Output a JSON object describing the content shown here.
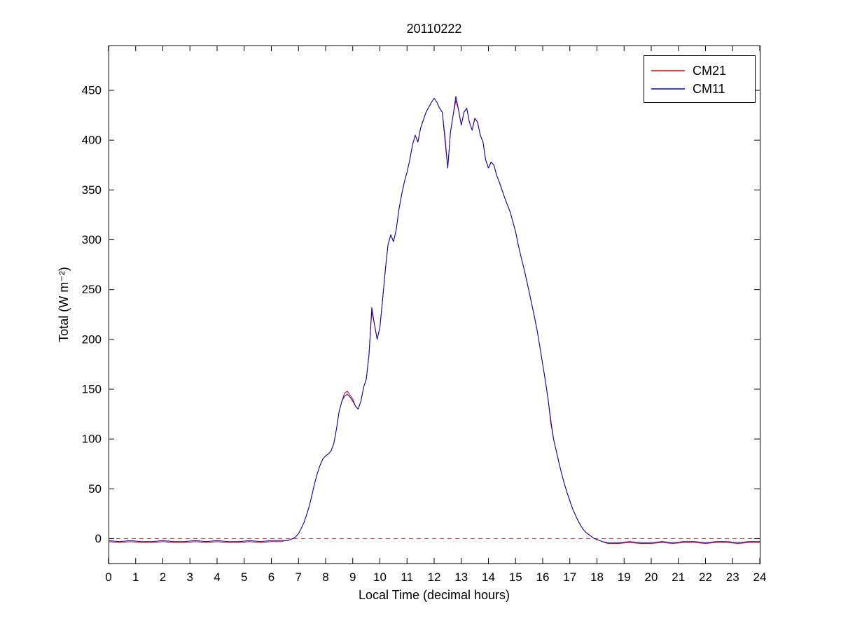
{
  "chart_data": {
    "type": "line",
    "title": "20110222",
    "xlabel": "Local Time (decimal hours)",
    "ylabel": "Total (W m⁻²)",
    "xlim": [
      0,
      24
    ],
    "ylim": [
      -25,
      495
    ],
    "xticks": [
      0,
      1,
      2,
      3,
      4,
      5,
      6,
      7,
      8,
      9,
      10,
      11,
      12,
      13,
      14,
      15,
      16,
      17,
      18,
      19,
      20,
      21,
      22,
      23,
      24
    ],
    "yticks": [
      0,
      50,
      100,
      150,
      200,
      250,
      300,
      350,
      400,
      450
    ],
    "grid": false,
    "legend_position": "top-right",
    "axis_color": "#000000",
    "background_color": "#ffffff",
    "zero_line": {
      "y": 0,
      "color": "#cc2222",
      "style": "dashed"
    },
    "x": [
      0,
      0.4,
      0.8,
      1.2,
      1.6,
      2,
      2.4,
      2.8,
      3.2,
      3.6,
      4,
      4.4,
      4.8,
      5.2,
      5.6,
      6,
      6.4,
      6.5,
      6.6,
      6.7,
      6.8,
      6.9,
      7,
      7.1,
      7.2,
      7.3,
      7.4,
      7.5,
      7.6,
      7.7,
      7.8,
      7.9,
      8,
      8.1,
      8.2,
      8.3,
      8.4,
      8.5,
      8.6,
      8.7,
      8.8,
      8.9,
      9,
      9.1,
      9.2,
      9.3,
      9.4,
      9.5,
      9.6,
      9.7,
      9.8,
      9.9,
      10,
      10.1,
      10.2,
      10.3,
      10.4,
      10.5,
      10.6,
      10.7,
      10.8,
      10.9,
      11,
      11.1,
      11.2,
      11.3,
      11.4,
      11.5,
      11.6,
      11.7,
      11.8,
      11.9,
      12,
      12.1,
      12.2,
      12.3,
      12.4,
      12.5,
      12.6,
      12.7,
      12.8,
      12.9,
      13,
      13.1,
      13.2,
      13.3,
      13.4,
      13.5,
      13.6,
      13.7,
      13.8,
      13.9,
      14,
      14.1,
      14.2,
      14.3,
      14.4,
      14.5,
      14.6,
      14.7,
      14.8,
      14.9,
      15,
      15.1,
      15.2,
      15.3,
      15.4,
      15.5,
      15.6,
      15.7,
      15.8,
      15.9,
      16,
      16.1,
      16.2,
      16.3,
      16.4,
      16.5,
      16.6,
      16.7,
      16.8,
      16.9,
      17,
      17.1,
      17.2,
      17.3,
      17.4,
      17.5,
      17.6,
      17.7,
      17.8,
      17.9,
      18,
      18.1,
      18.2,
      18.4,
      18.8,
      19.2,
      19.6,
      20,
      20.4,
      20.8,
      21.2,
      21.6,
      22,
      22.4,
      22.8,
      23.2,
      23.6,
      24
    ],
    "series": [
      {
        "name": "CM21",
        "color": "#e00000",
        "values": [
          -3,
          -4,
          -3,
          -4,
          -4,
          -3,
          -4,
          -4,
          -3,
          -4,
          -3,
          -4,
          -4,
          -3,
          -4,
          -3,
          -3,
          -2,
          -2,
          -1,
          0,
          2,
          5,
          10,
          16,
          24,
          33,
          44,
          56,
          66,
          74,
          80,
          83,
          85,
          88,
          95,
          110,
          128,
          138,
          146,
          148,
          144,
          140,
          133,
          130,
          138,
          152,
          160,
          185,
          228,
          215,
          200,
          212,
          240,
          270,
          295,
          305,
          298,
          310,
          330,
          345,
          358,
          368,
          380,
          395,
          405,
          398,
          412,
          420,
          428,
          433,
          438,
          442,
          438,
          432,
          428,
          404,
          372,
          408,
          425,
          440,
          430,
          415,
          428,
          432,
          418,
          410,
          422,
          418,
          405,
          398,
          380,
          372,
          378,
          375,
          365,
          358,
          350,
          342,
          335,
          328,
          318,
          308,
          295,
          283,
          272,
          260,
          248,
          235,
          222,
          208,
          192,
          175,
          158,
          140,
          119,
          100,
          88,
          76,
          65,
          55,
          46,
          38,
          30,
          24,
          18,
          13,
          9,
          6,
          4,
          2,
          0,
          -1,
          -2,
          -3,
          -5,
          -5,
          -4,
          -5,
          -5,
          -4,
          -5,
          -4,
          -4,
          -5,
          -4,
          -4,
          -5,
          -4,
          -4
        ]
      },
      {
        "name": "CM11",
        "color": "#0000cc",
        "values": [
          -2,
          -3,
          -2,
          -3,
          -3,
          -2,
          -3,
          -3,
          -2,
          -3,
          -2,
          -3,
          -3,
          -2,
          -3,
          -2,
          -2,
          -2,
          -2,
          -1,
          0,
          2,
          5,
          10,
          16,
          24,
          33,
          44,
          56,
          66,
          74,
          80,
          83,
          85,
          88,
          95,
          110,
          128,
          138,
          143,
          145,
          142,
          138,
          133,
          130,
          138,
          152,
          160,
          185,
          232,
          215,
          200,
          212,
          240,
          270,
          295,
          305,
          298,
          310,
          330,
          345,
          358,
          368,
          380,
          395,
          405,
          398,
          412,
          420,
          428,
          433,
          438,
          442,
          438,
          432,
          428,
          400,
          372,
          408,
          425,
          444,
          430,
          415,
          428,
          432,
          418,
          410,
          422,
          418,
          405,
          398,
          380,
          372,
          378,
          375,
          365,
          358,
          350,
          342,
          335,
          328,
          318,
          308,
          295,
          283,
          272,
          260,
          248,
          235,
          222,
          208,
          192,
          175,
          158,
          140,
          116,
          100,
          88,
          76,
          65,
          55,
          46,
          38,
          30,
          24,
          18,
          13,
          9,
          6,
          4,
          2,
          0,
          -1,
          -2,
          -3,
          -4,
          -4,
          -3,
          -4,
          -4,
          -3,
          -4,
          -3,
          -3,
          -4,
          -3,
          -3,
          -4,
          -3,
          -3
        ]
      }
    ]
  }
}
